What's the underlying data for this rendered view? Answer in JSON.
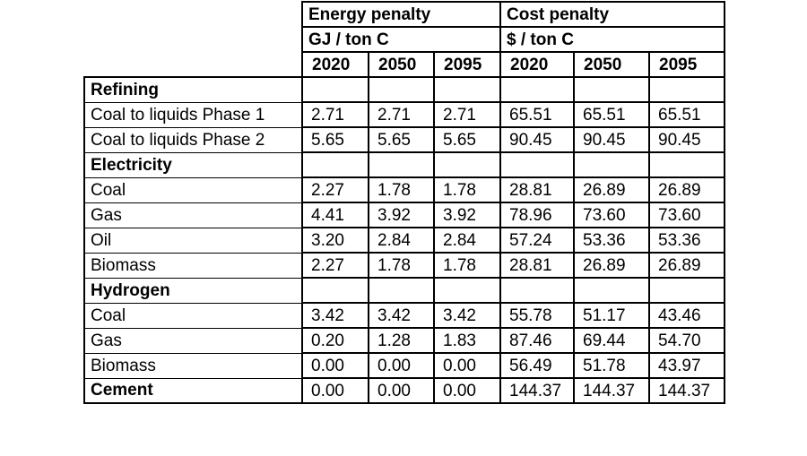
{
  "headers": {
    "energy_title": "Energy penalty",
    "energy_unit": "GJ / ton C",
    "cost_title": "Cost penalty",
    "cost_unit": "$ / ton C",
    "years": [
      "2020",
      "2050",
      "2095",
      "2020",
      "2050",
      "2095"
    ]
  },
  "rows": [
    {
      "label": "Refining",
      "bold": true,
      "values": [
        "",
        "",
        "",
        "",
        "",
        ""
      ]
    },
    {
      "label": "Coal to liquids Phase 1",
      "bold": false,
      "values": [
        "2.71",
        "2.71",
        "2.71",
        "65.51",
        "65.51",
        "65.51"
      ]
    },
    {
      "label": "Coal to liquids Phase 2",
      "bold": false,
      "values": [
        "5.65",
        "5.65",
        "5.65",
        "90.45",
        "90.45",
        "90.45"
      ]
    },
    {
      "label": "Electricity",
      "bold": true,
      "values": [
        "",
        "",
        "",
        "",
        "",
        ""
      ]
    },
    {
      "label": "Coal",
      "bold": false,
      "values": [
        "2.27",
        "1.78",
        "1.78",
        "28.81",
        "26.89",
        "26.89"
      ]
    },
    {
      "label": "Gas",
      "bold": false,
      "values": [
        "4.41",
        "3.92",
        "3.92",
        "78.96",
        "73.60",
        "73.60"
      ]
    },
    {
      "label": "Oil",
      "bold": false,
      "values": [
        "3.20",
        "2.84",
        "2.84",
        "57.24",
        "53.36",
        "53.36"
      ]
    },
    {
      "label": "Biomass",
      "bold": false,
      "values": [
        "2.27",
        "1.78",
        "1.78",
        "28.81",
        "26.89",
        "26.89"
      ]
    },
    {
      "label": "Hydrogen",
      "bold": true,
      "values": [
        "",
        "",
        "",
        "",
        "",
        ""
      ]
    },
    {
      "label": "Coal",
      "bold": false,
      "values": [
        "3.42",
        "3.42",
        "3.42",
        "55.78",
        "51.17",
        "43.46"
      ]
    },
    {
      "label": "Gas",
      "bold": false,
      "values": [
        "0.20",
        "1.28",
        "1.83",
        "87.46",
        "69.44",
        "54.70"
      ]
    },
    {
      "label": "Biomass",
      "bold": false,
      "values": [
        "0.00",
        "0.00",
        "0.00",
        "56.49",
        "51.78",
        "43.97"
      ]
    },
    {
      "label": "Cement",
      "bold": true,
      "values": [
        "0.00",
        "0.00",
        "0.00",
        "144.37",
        "144.37",
        "144.37"
      ]
    }
  ]
}
